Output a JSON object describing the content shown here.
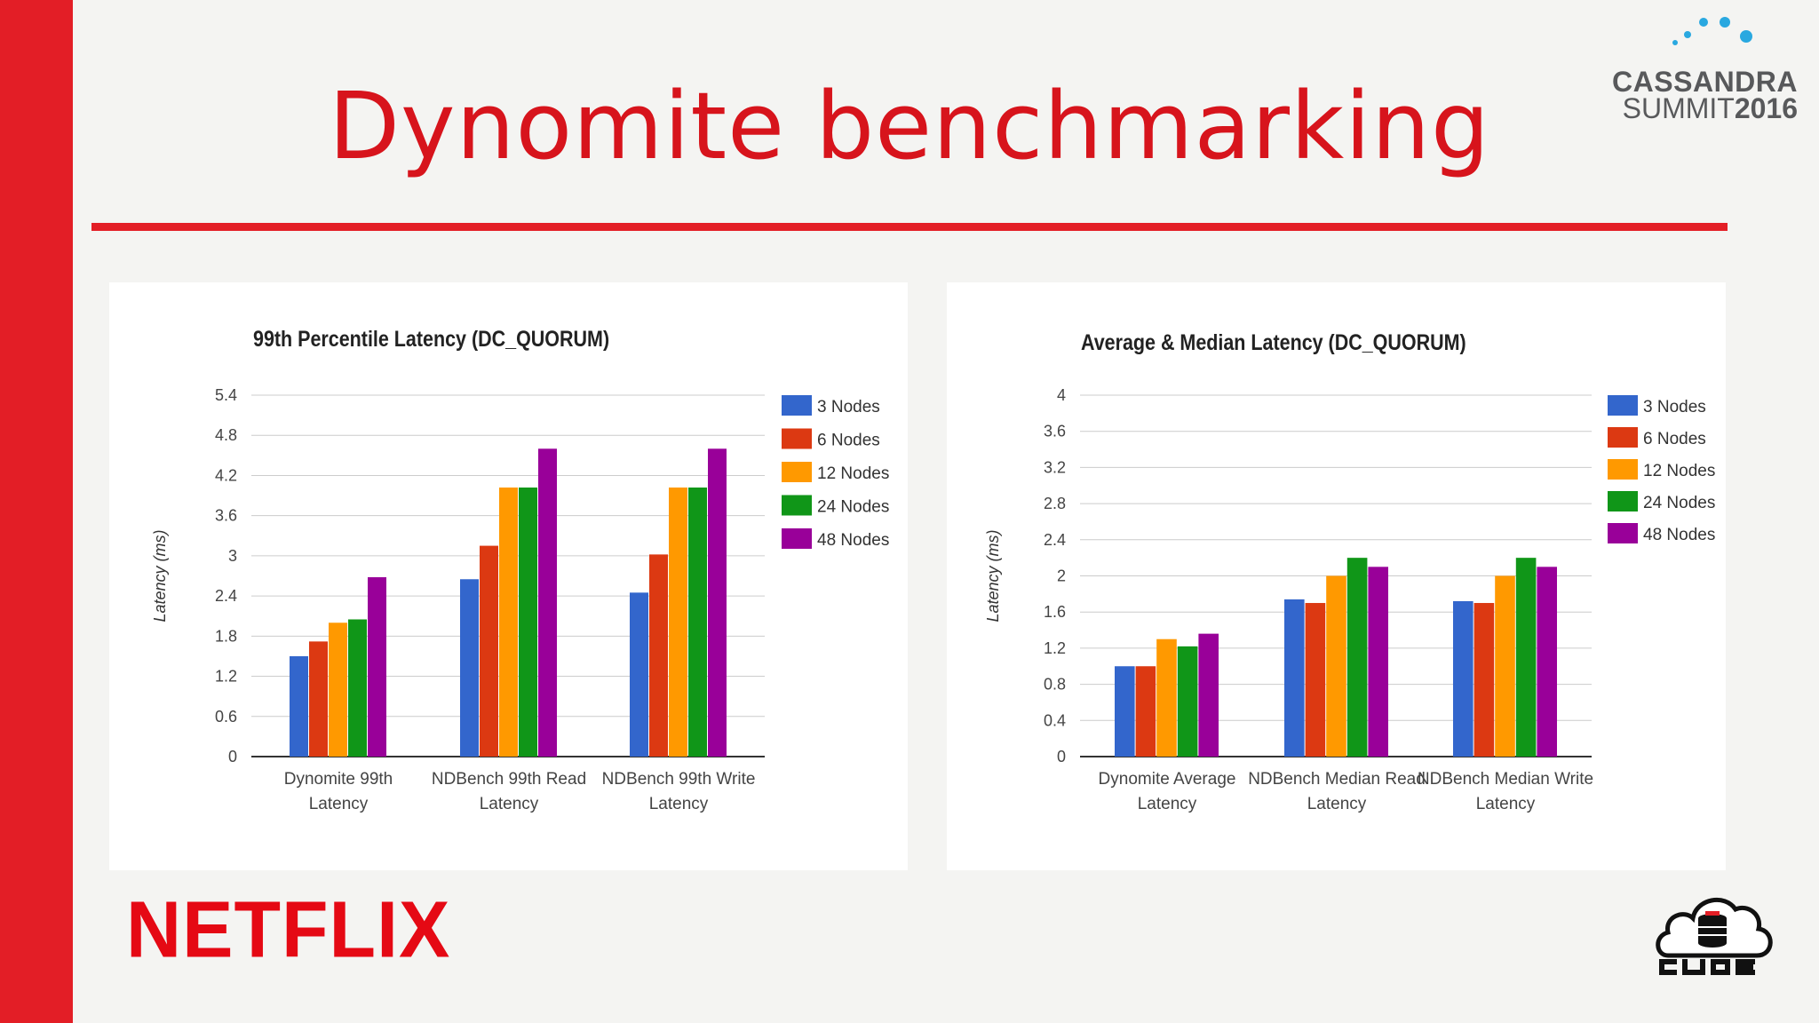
{
  "slide": {
    "title": "Dynomite benchmarking",
    "brand_logo": "NETFLIX",
    "event_logo": {
      "line1": "CASSANDRA",
      "line2_a": "SUMMIT",
      "line2_b": "2016"
    },
    "corner_logo_icon": "cloud-database-icon",
    "colors": {
      "accent": "#e31e26",
      "title": "#d7141c"
    }
  },
  "chart_data": [
    {
      "type": "bar",
      "title": "99th Percentile Latency (DC_QUORUM)",
      "ylabel": "Latency (ms)",
      "xlabel": "",
      "ylim": [
        0,
        5.4
      ],
      "yticks": [
        "0",
        "0.6",
        "1.2",
        "1.8",
        "2.4",
        "3",
        "3.6",
        "4.2",
        "4.8",
        "5.4"
      ],
      "categories": [
        [
          "Dynomite 99th",
          "Latency"
        ],
        [
          "NDBench 99th Read",
          "Latency"
        ],
        [
          "NDBench 99th Write",
          "Latency"
        ]
      ],
      "series": [
        {
          "name": "3 Nodes",
          "color": "#3366cc",
          "values": [
            1.5,
            2.65,
            2.45
          ]
        },
        {
          "name": "6 Nodes",
          "color": "#dc3912",
          "values": [
            1.72,
            3.15,
            3.02
          ]
        },
        {
          "name": "12 Nodes",
          "color": "#ff9900",
          "values": [
            2.0,
            4.02,
            4.02
          ]
        },
        {
          "name": "24 Nodes",
          "color": "#109618",
          "values": [
            2.05,
            4.02,
            4.02
          ]
        },
        {
          "name": "48 Nodes",
          "color": "#990099",
          "values": [
            2.68,
            4.6,
            4.6
          ]
        }
      ],
      "grid": true,
      "legend": "right"
    },
    {
      "type": "bar",
      "title": "Average & Median Latency (DC_QUORUM)",
      "ylabel": "Latency (ms)",
      "xlabel": "",
      "ylim": [
        0,
        4
      ],
      "yticks": [
        "0",
        "0.4",
        "0.8",
        "1.2",
        "1.6",
        "2",
        "2.4",
        "2.8",
        "3.2",
        "3.6",
        "4"
      ],
      "categories": [
        [
          "Dynomite Average",
          "Latency"
        ],
        [
          "NDBench Median Read",
          "Latency"
        ],
        [
          "NDBench Median Write",
          "Latency"
        ]
      ],
      "series": [
        {
          "name": "3 Nodes",
          "color": "#3366cc",
          "values": [
            1.0,
            1.74,
            1.72
          ]
        },
        {
          "name": "6 Nodes",
          "color": "#dc3912",
          "values": [
            1.0,
            1.7,
            1.7
          ]
        },
        {
          "name": "12 Nodes",
          "color": "#ff9900",
          "values": [
            1.3,
            2.0,
            2.0
          ]
        },
        {
          "name": "24 Nodes",
          "color": "#109618",
          "values": [
            1.22,
            2.2,
            2.2
          ]
        },
        {
          "name": "48 Nodes",
          "color": "#990099",
          "values": [
            1.36,
            2.1,
            2.1
          ]
        }
      ],
      "grid": true,
      "legend": "right"
    }
  ]
}
